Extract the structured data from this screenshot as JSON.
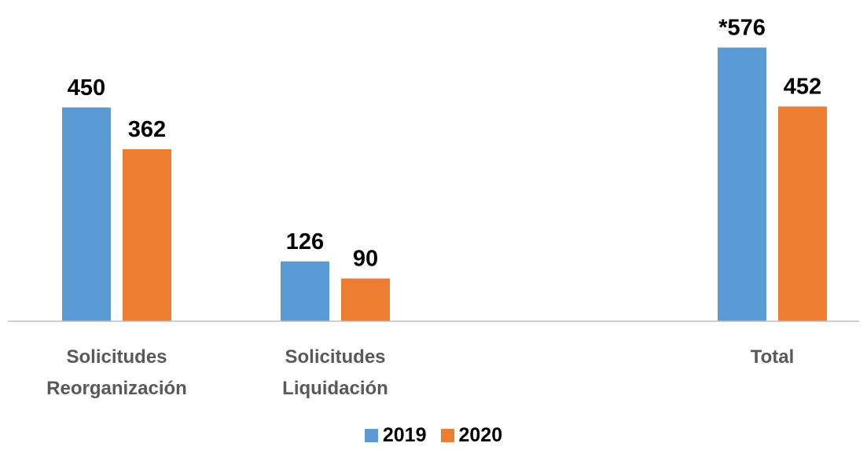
{
  "chart_data": {
    "type": "bar",
    "categories": [
      [
        "Solicitudes",
        "Reorganización"
      ],
      [
        "Solicitudes",
        "Liquidación"
      ],
      [
        ""
      ],
      [
        "Total"
      ]
    ],
    "series": [
      {
        "name": "2019",
        "color": "#5B9BD5",
        "values": [
          450,
          126,
          null,
          576
        ],
        "labels": [
          "450",
          "126",
          "",
          "*576"
        ]
      },
      {
        "name": "2020",
        "color": "#ED7D31",
        "values": [
          362,
          90,
          null,
          452
        ],
        "labels": [
          "362",
          "90",
          "",
          "452"
        ]
      }
    ],
    "ylim": [
      0,
      600
    ],
    "grid": false,
    "legend_position": "bottom"
  }
}
